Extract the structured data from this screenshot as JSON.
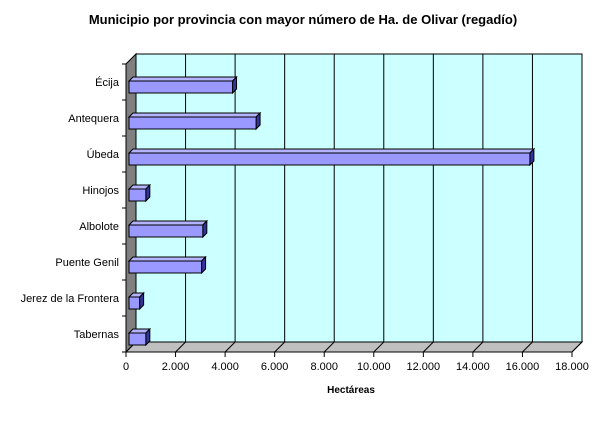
{
  "chart_data": {
    "type": "bar",
    "orientation": "horizontal",
    "style": "3d",
    "title": "Municipio por provincia con mayor número de Ha. de Olivar (regadío)",
    "xlabel": "Hectáreas",
    "ylabel": "",
    "categories": [
      "Écija",
      "Antequera",
      "Úbeda",
      "Hinojos",
      "Albolote",
      "Puente Genil",
      "Jerez de la Frontera",
      "Tabernas"
    ],
    "values": [
      4300,
      5250,
      16300,
      800,
      3100,
      3050,
      550,
      800
    ],
    "xlim": [
      0,
      18000
    ],
    "xticks": [
      0,
      2000,
      4000,
      6000,
      8000,
      10000,
      12000,
      14000,
      16000,
      18000
    ],
    "xtick_labels": [
      "0",
      "2.000",
      "4.000",
      "6.000",
      "8.000",
      "10.000",
      "12.000",
      "14.000",
      "16.000",
      "18.000"
    ],
    "grid": true,
    "legend": "none",
    "colors": {
      "bar_front": "#9999ff",
      "bar_top": "#b3b3ff",
      "bar_side": "#333399",
      "plot_back": "#ccffff",
      "plot_floor": "#c0c0c0",
      "plot_wall": "#808080"
    }
  }
}
